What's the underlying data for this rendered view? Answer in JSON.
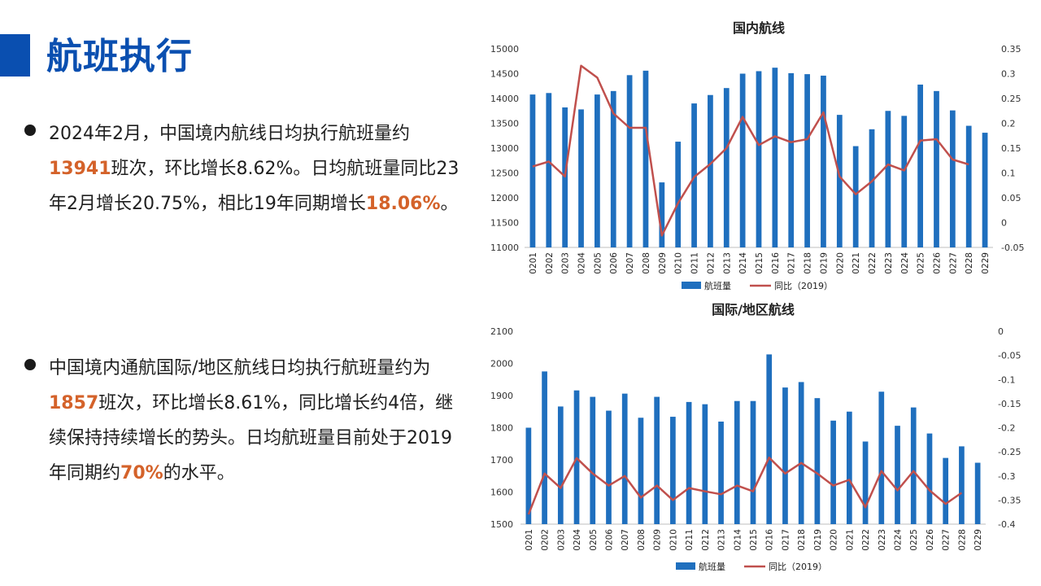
{
  "page": {
    "title": "航班执行"
  },
  "bullets": [
    {
      "parts": [
        {
          "t": "2024年2月，中国境内航线日均执行航班量约"
        },
        {
          "t": "13941",
          "hl": true
        },
        {
          "t": "班次，环比增长8.62%。日均航班量同比23年2月增长20.75%，相比19年同期增长"
        },
        {
          "t": "18.06%",
          "hl": true
        },
        {
          "t": "。"
        }
      ]
    },
    {
      "parts": [
        {
          "t": "中国境内通航国际/地区航线日均执行航班量约为"
        },
        {
          "t": "1857",
          "hl": true
        },
        {
          "t": "班次，环比增长8.61%，同比增长约4倍，继续保持持续增长的势头。日均航班量目前处于2019年同期约"
        },
        {
          "t": "70%",
          "hl": true
        },
        {
          "t": "的水平。"
        }
      ]
    }
  ],
  "colors": {
    "accent": "#0a4fb0",
    "highlight": "#d4622a",
    "bar": "#1f6fbe",
    "line": "#c0504d"
  },
  "chart_data": [
    {
      "type": "bar",
      "title": "国内航线",
      "categories": [
        "0201",
        "0202",
        "0203",
        "0204",
        "0205",
        "0206",
        "0207",
        "0208",
        "0209",
        "0210",
        "0211",
        "0212",
        "0213",
        "0214",
        "0215",
        "0216",
        "0217",
        "0218",
        "0219",
        "0220",
        "0221",
        "0222",
        "0223",
        "0224",
        "0225",
        "0226",
        "0227",
        "0228",
        "0229"
      ],
      "series": [
        {
          "name": "航班量",
          "kind": "bar",
          "axis": "left",
          "values": [
            14080,
            14110,
            13820,
            13780,
            14080,
            14150,
            14470,
            14560,
            12310,
            13130,
            13900,
            14070,
            14210,
            14500,
            14550,
            14620,
            14510,
            14490,
            14460,
            13670,
            13040,
            13380,
            13750,
            13650,
            14280,
            14150,
            13760,
            13450,
            13310
          ]
        },
        {
          "name": "同比（2019）",
          "kind": "line",
          "axis": "right",
          "values": [
            0.113,
            0.123,
            0.093,
            0.316,
            0.292,
            0.22,
            0.191,
            0.191,
            -0.026,
            0.039,
            0.092,
            0.118,
            0.15,
            0.213,
            0.156,
            0.174,
            0.162,
            0.168,
            0.222,
            0.093,
            0.057,
            0.083,
            0.117,
            0.105,
            0.165,
            0.168,
            0.127,
            0.117,
            null
          ]
        }
      ],
      "ylim_left": [
        11000,
        15000
      ],
      "yticks_left": [
        11000,
        11500,
        12000,
        12500,
        13000,
        13500,
        14000,
        14500,
        15000
      ],
      "ylim_right": [
        -0.05,
        0.35
      ],
      "yticks_right": [
        -0.05,
        0,
        0.05,
        0.1,
        0.15,
        0.2,
        0.25,
        0.3,
        0.35
      ],
      "legend": "bottom"
    },
    {
      "type": "bar",
      "title": "国际/地区航线",
      "categories": [
        "0201",
        "0202",
        "0203",
        "0204",
        "0205",
        "0206",
        "0207",
        "0208",
        "0209",
        "0210",
        "0211",
        "0212",
        "0213",
        "0214",
        "0215",
        "0216",
        "0217",
        "0218",
        "0219",
        "0220",
        "0221",
        "0222",
        "0223",
        "0224",
        "0225",
        "0226",
        "0227",
        "0228",
        "0229"
      ],
      "series": [
        {
          "name": "航班量",
          "kind": "bar",
          "axis": "left",
          "values": [
            1800,
            1975,
            1866,
            1916,
            1896,
            1853,
            1906,
            1831,
            1896,
            1834,
            1880,
            1873,
            1819,
            1883,
            1883,
            2028,
            1925,
            1942,
            1892,
            1822,
            1850,
            1757,
            1912,
            1806,
            1863,
            1782,
            1706,
            1742,
            1691
          ]
        },
        {
          "name": "同比（2019）",
          "kind": "line",
          "axis": "right",
          "values": [
            -0.38,
            -0.295,
            -0.325,
            -0.263,
            -0.295,
            -0.32,
            -0.3,
            -0.345,
            -0.32,
            -0.35,
            -0.325,
            -0.332,
            -0.338,
            -0.32,
            -0.332,
            -0.262,
            -0.295,
            -0.273,
            -0.295,
            -0.32,
            -0.308,
            -0.365,
            -0.29,
            -0.33,
            -0.29,
            -0.33,
            -0.358,
            -0.335,
            null
          ]
        }
      ],
      "ylim_left": [
        1500,
        2100
      ],
      "yticks_left": [
        1500,
        1600,
        1700,
        1800,
        1900,
        2000,
        2100
      ],
      "ylim_right": [
        -0.4,
        0
      ],
      "yticks_right": [
        -0.4,
        -0.35,
        -0.3,
        -0.25,
        -0.2,
        -0.15,
        -0.1,
        -0.05,
        0
      ],
      "legend": "bottom"
    }
  ]
}
